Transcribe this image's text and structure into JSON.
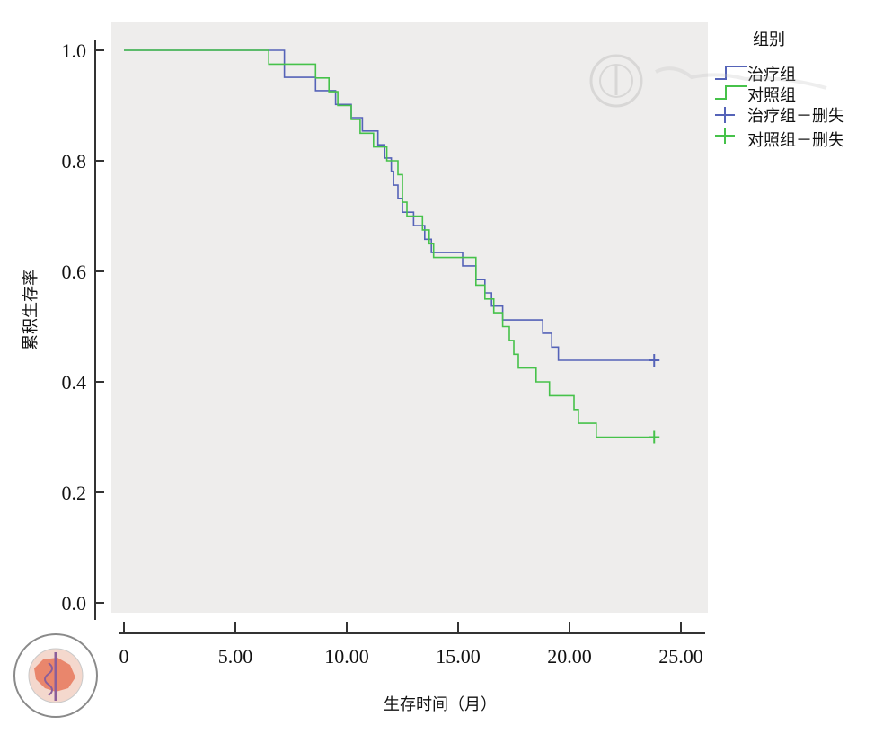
{
  "chart_data": {
    "type": "line",
    "step": true,
    "xlabel": "生存时间（月）",
    "ylabel": "累积生存率",
    "xlim": [
      0,
      25
    ],
    "ylim": [
      0,
      1
    ],
    "x_ticks": [
      "0",
      "5.00",
      "10.00",
      "15.00",
      "20.00",
      "25.00"
    ],
    "y_ticks": [
      "0.0",
      "0.2",
      "0.4",
      "0.6",
      "0.8",
      "1.0"
    ],
    "grid": false,
    "background": "#eeedec",
    "legend": {
      "title": "组别",
      "placement": "top-right",
      "entries": [
        "治疗组",
        "对照组",
        "治疗组－删失",
        "对照组－删失"
      ]
    },
    "series": [
      {
        "name": "治疗组",
        "color": "#5563b8",
        "x": [
          0,
          7.2,
          8.6,
          9.5,
          10.2,
          10.7,
          11.4,
          11.7,
          12.0,
          12.1,
          12.3,
          12.5,
          13.0,
          13.5,
          13.8,
          15.2,
          15.8,
          16.2,
          16.5,
          17.0,
          18.8,
          19.2,
          19.5,
          24
        ],
        "y": [
          1.0,
          0.951,
          0.927,
          0.902,
          0.878,
          0.854,
          0.829,
          0.805,
          0.781,
          0.756,
          0.732,
          0.707,
          0.683,
          0.658,
          0.634,
          0.61,
          0.585,
          0.561,
          0.537,
          0.512,
          0.488,
          0.463,
          0.439,
          0.439
        ],
        "censored": [
          {
            "x": 23.8,
            "y": 0.439
          }
        ]
      },
      {
        "name": "对照组",
        "color": "#46c24a",
        "x": [
          0,
          6.5,
          8.6,
          9.2,
          9.6,
          10.2,
          10.6,
          11.2,
          11.8,
          12.3,
          12.5,
          12.7,
          13.4,
          13.7,
          13.9,
          15.8,
          16.2,
          16.6,
          17.0,
          17.3,
          17.5,
          17.7,
          18.5,
          19.1,
          20.2,
          20.4,
          21.2,
          24
        ],
        "y": [
          1.0,
          0.975,
          0.95,
          0.925,
          0.9,
          0.875,
          0.85,
          0.825,
          0.8,
          0.775,
          0.725,
          0.7,
          0.675,
          0.65,
          0.625,
          0.575,
          0.55,
          0.525,
          0.5,
          0.475,
          0.45,
          0.425,
          0.4,
          0.375,
          0.35,
          0.325,
          0.3,
          0.3
        ],
        "censored": [
          {
            "x": 23.8,
            "y": 0.3
          }
        ]
      }
    ]
  }
}
